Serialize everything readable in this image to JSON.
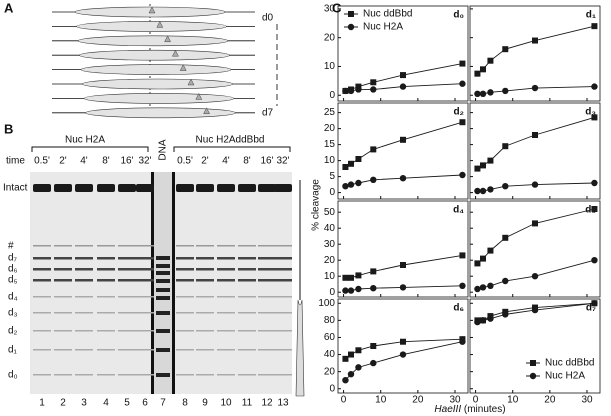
{
  "panel_a": {
    "label": "A",
    "top": "d0",
    "bottom": "d7"
  },
  "panel_b": {
    "label": "B",
    "group_left": "Nuc H2A",
    "group_right": "Nuc H2AddBbd",
    "dna": "DNA",
    "time_label": "time",
    "times": [
      "0.5'",
      "2'",
      "4'",
      "8'",
      "16'",
      "32'"
    ],
    "intact": "Intact",
    "hash": "#",
    "bands": [
      "d₇",
      "d₆",
      "d₅",
      "d₄",
      "d₃",
      "d₂",
      "d₁",
      "d₀"
    ],
    "lanes": [
      1,
      2,
      3,
      4,
      5,
      6,
      7,
      8,
      9,
      10,
      11,
      12,
      13
    ]
  },
  "panel_c": {
    "label": "C",
    "ylabel": "% cleavage",
    "xlabel_italic": "HaeIII",
    "xlabel_rest": "(minutes)"
  },
  "chart_data": [
    {
      "type": "line",
      "title": "d₀",
      "x": [
        0.5,
        2,
        4,
        8,
        16,
        32
      ],
      "xlim": [
        -1.5,
        33.5
      ],
      "xticks": [
        0,
        10,
        20,
        30
      ],
      "ylim": [
        -2,
        31
      ],
      "yticks": [
        0,
        10,
        20,
        30
      ],
      "xtick_labels": false,
      "ytick_labels": true,
      "legend": "upper left",
      "series": [
        {
          "name": "Nuc ddBbd",
          "marker": "square",
          "color": "#1a1a1a",
          "values": [
            1.5,
            2,
            3,
            4.5,
            7,
            11
          ]
        },
        {
          "name": "Nuc H2A",
          "marker": "circle",
          "color": "#1a1a1a",
          "values": [
            1.5,
            1.5,
            2,
            2,
            3,
            4
          ]
        }
      ]
    },
    {
      "type": "line",
      "title": "d₁",
      "x": [
        0.5,
        2,
        4,
        8,
        16,
        32
      ],
      "xlim": [
        -1.5,
        33.5
      ],
      "xticks": [
        0,
        10,
        20,
        30
      ],
      "ylim": [
        -2,
        31
      ],
      "yticks": [
        0,
        10,
        20,
        30
      ],
      "xtick_labels": false,
      "ytick_labels": false,
      "series": [
        {
          "marker": "square",
          "color": "#1a1a1a",
          "values": [
            7.5,
            9,
            12,
            16,
            19,
            24
          ]
        },
        {
          "marker": "circle",
          "color": "#1a1a1a",
          "values": [
            0.5,
            0.5,
            1,
            1.5,
            2.5,
            3
          ]
        }
      ]
    },
    {
      "type": "line",
      "title": "d₂",
      "x": [
        0.5,
        2,
        4,
        8,
        16,
        32
      ],
      "xlim": [
        -1.5,
        33.5
      ],
      "xticks": [
        0,
        10,
        20,
        30
      ],
      "ylim": [
        -2,
        28
      ],
      "yticks": [
        0,
        5,
        10,
        15,
        20,
        25
      ],
      "xtick_labels": false,
      "ytick_labels": true,
      "series": [
        {
          "marker": "square",
          "color": "#1a1a1a",
          "values": [
            8,
            9,
            10.5,
            13.5,
            16.5,
            22
          ]
        },
        {
          "marker": "circle",
          "color": "#1a1a1a",
          "values": [
            2,
            2.5,
            3,
            4,
            4.5,
            5.5
          ]
        }
      ]
    },
    {
      "type": "line",
      "title": "d₃",
      "x": [
        0.5,
        2,
        4,
        8,
        16,
        32
      ],
      "xlim": [
        -1.5,
        33.5
      ],
      "xticks": [
        0,
        10,
        20,
        30
      ],
      "ylim": [
        -2,
        28
      ],
      "yticks": [
        0,
        5,
        10,
        15,
        20,
        25
      ],
      "xtick_labels": false,
      "ytick_labels": false,
      "series": [
        {
          "marker": "square",
          "color": "#1a1a1a",
          "values": [
            7.5,
            8.5,
            10,
            14.5,
            18,
            23.5
          ]
        },
        {
          "marker": "circle",
          "color": "#1a1a1a",
          "values": [
            0.5,
            0.5,
            1,
            2,
            2.5,
            3
          ]
        }
      ]
    },
    {
      "type": "line",
      "title": "d₄",
      "x": [
        0.5,
        2,
        4,
        8,
        16,
        32
      ],
      "xlim": [
        -1.5,
        33.5
      ],
      "xticks": [
        0,
        10,
        20,
        30
      ],
      "ylim": [
        -3,
        57
      ],
      "yticks": [
        0,
        10,
        20,
        30,
        40,
        50
      ],
      "xtick_labels": false,
      "ytick_labels": true,
      "series": [
        {
          "marker": "square",
          "color": "#1a1a1a",
          "values": [
            9,
            9,
            10.5,
            13,
            17,
            23
          ]
        },
        {
          "marker": "circle",
          "color": "#1a1a1a",
          "values": [
            1,
            1,
            2,
            2.5,
            3,
            4
          ]
        }
      ]
    },
    {
      "type": "line",
      "title": "d₅",
      "x": [
        0.5,
        2,
        4,
        8,
        16,
        32
      ],
      "xlim": [
        -1.5,
        33.5
      ],
      "xticks": [
        0,
        10,
        20,
        30
      ],
      "ylim": [
        -3,
        57
      ],
      "yticks": [
        0,
        10,
        20,
        30,
        40,
        50
      ],
      "xtick_labels": false,
      "ytick_labels": false,
      "series": [
        {
          "marker": "square",
          "color": "#1a1a1a",
          "values": [
            18,
            21,
            26,
            34,
            43,
            52
          ]
        },
        {
          "marker": "circle",
          "color": "#1a1a1a",
          "values": [
            2,
            3,
            4,
            7,
            10,
            20
          ]
        }
      ]
    },
    {
      "type": "line",
      "title": "d₆",
      "x": [
        0.5,
        2,
        4,
        8,
        16,
        32
      ],
      "xlim": [
        -1.5,
        33.5
      ],
      "xticks": [
        0,
        10,
        20,
        30
      ],
      "ylim": [
        -5,
        105
      ],
      "yticks": [
        0,
        20,
        40,
        60,
        80,
        100
      ],
      "xtick_labels": true,
      "ytick_labels": true,
      "series": [
        {
          "marker": "square",
          "color": "#1a1a1a",
          "values": [
            35,
            40,
            45,
            50,
            55,
            58
          ]
        },
        {
          "marker": "circle",
          "color": "#1a1a1a",
          "values": [
            10,
            17,
            25,
            30,
            40,
            55
          ]
        }
      ]
    },
    {
      "type": "line",
      "title": "d₇",
      "x": [
        0.5,
        2,
        4,
        8,
        16,
        32
      ],
      "xlim": [
        -1.5,
        33.5
      ],
      "xticks": [
        0,
        10,
        20,
        30
      ],
      "ylim": [
        -5,
        105
      ],
      "yticks": [
        0,
        20,
        40,
        60,
        80,
        100
      ],
      "xtick_labels": true,
      "ytick_labels": false,
      "legend": "lower right",
      "series": [
        {
          "name": "Nuc ddBbd",
          "marker": "square",
          "color": "#1a1a1a",
          "values": [
            80,
            80,
            85,
            90,
            95,
            100
          ]
        },
        {
          "name": "Nuc H2A",
          "marker": "circle",
          "color": "#1a1a1a",
          "values": [
            78,
            80,
            82,
            87,
            92,
            100
          ]
        }
      ]
    }
  ]
}
